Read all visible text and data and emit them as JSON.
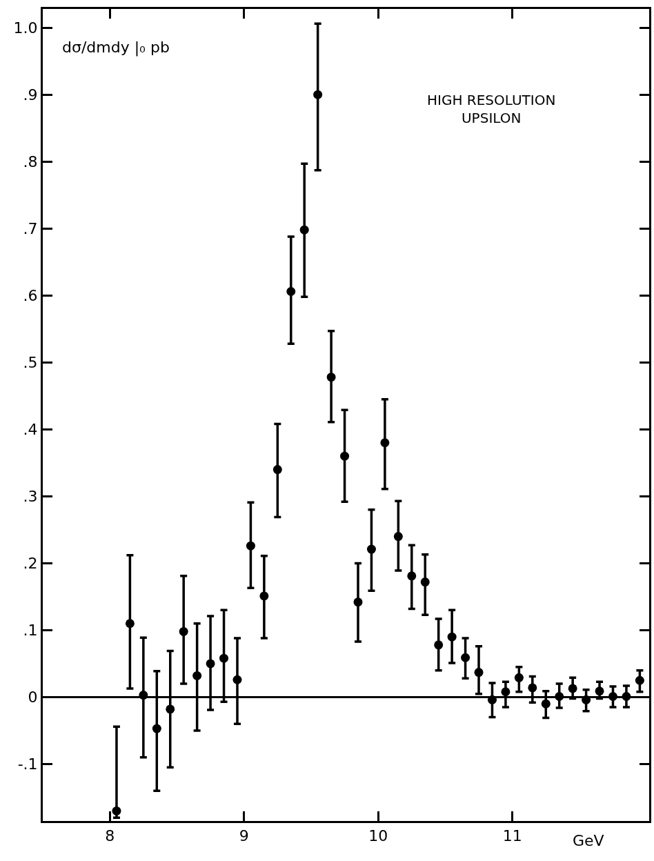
{
  "chart_data": {
    "type": "scatter",
    "ylabel": "dσ/dmdy |₀ pb",
    "xlabel": "GeV",
    "annotations": [
      "HIGH RESOLUTION\nUPSILON"
    ],
    "x": [
      8.05,
      8.15,
      8.25,
      8.35,
      8.45,
      8.55,
      8.65,
      8.75,
      8.85,
      8.95,
      9.05,
      9.15,
      9.25,
      9.35,
      9.45,
      9.55,
      9.65,
      9.75,
      9.85,
      9.95,
      10.05,
      10.15,
      10.25,
      10.35,
      10.45,
      10.55,
      10.65,
      10.75,
      10.85,
      10.95,
      11.05,
      11.15,
      11.25,
      11.35,
      11.45,
      11.55,
      11.65,
      11.75,
      11.85,
      11.95
    ],
    "series": [
      {
        "color": "#000000",
        "values": [
          -0.17,
          0.11,
          0.003,
          -0.047,
          -0.018,
          0.098,
          0.032,
          0.05,
          0.058,
          0.026,
          0.226,
          0.151,
          0.34,
          0.606,
          0.698,
          0.9,
          0.478,
          0.36,
          0.142,
          0.221,
          0.38,
          0.24,
          0.181,
          0.172,
          0.078,
          0.09,
          0.059,
          0.037,
          -0.004,
          0.008,
          0.029,
          0.014,
          -0.01,
          0.001,
          0.013,
          -0.004,
          0.009,
          0.001,
          0.001,
          0.025
        ],
        "errors": [
          [
            -0.18,
            -0.044
          ],
          [
            0.013,
            0.212
          ],
          [
            -0.09,
            0.089
          ],
          [
            -0.14,
            0.039
          ],
          [
            -0.105,
            0.069
          ],
          [
            0.02,
            0.181
          ],
          [
            -0.05,
            0.11
          ],
          [
            -0.019,
            0.121
          ],
          [
            -0.007,
            0.13
          ],
          [
            -0.04,
            0.088
          ],
          [
            0.163,
            0.291
          ],
          [
            0.088,
            0.211
          ],
          [
            0.269,
            0.408
          ],
          [
            0.528,
            0.688
          ],
          [
            0.598,
            0.797
          ],
          [
            0.787,
            1.006
          ],
          [
            0.411,
            0.547
          ],
          [
            0.292,
            0.429
          ],
          [
            0.083,
            0.2
          ],
          [
            0.159,
            0.28
          ],
          [
            0.311,
            0.445
          ],
          [
            0.189,
            0.293
          ],
          [
            0.132,
            0.227
          ],
          [
            0.123,
            0.213
          ],
          [
            0.04,
            0.117
          ],
          [
            0.051,
            0.13
          ],
          [
            0.028,
            0.088
          ],
          [
            0.005,
            0.076
          ],
          [
            -0.03,
            0.021
          ],
          [
            -0.015,
            0.023
          ],
          [
            0.008,
            0.045
          ],
          [
            -0.008,
            0.031
          ],
          [
            -0.031,
            0.009
          ],
          [
            -0.016,
            0.02
          ],
          [
            -0.002,
            0.029
          ],
          [
            -0.021,
            0.011
          ],
          [
            -0.002,
            0.023
          ],
          [
            -0.015,
            0.016
          ],
          [
            -0.015,
            0.017
          ],
          [
            0.008,
            0.04
          ]
        ]
      }
    ],
    "xlim": [
      7.5,
      12.02
    ],
    "ylim": [
      -0.185,
      1.028
    ],
    "xticks": [
      8,
      9,
      10,
      11
    ],
    "yticks": [
      {
        "value": 1.0,
        "label": "1.0"
      },
      {
        "value": 0.9,
        "label": ".9"
      },
      {
        "value": 0.8,
        "label": ".8"
      },
      {
        "value": 0.7,
        "label": ".7"
      },
      {
        "value": 0.6,
        "label": ".6"
      },
      {
        "value": 0.5,
        "label": ".5"
      },
      {
        "value": 0.4,
        "label": ".4"
      },
      {
        "value": 0.3,
        "label": ".3"
      },
      {
        "value": 0.2,
        "label": ".2"
      },
      {
        "value": 0.1,
        "label": ".1"
      },
      0,
      {
        "value": -0.1,
        "label": "-.1"
      }
    ],
    "ref_lines": [
      {
        "axis": "y",
        "value": 0,
        "color": "#000000"
      }
    ],
    "marker": "circle",
    "legend": false
  }
}
